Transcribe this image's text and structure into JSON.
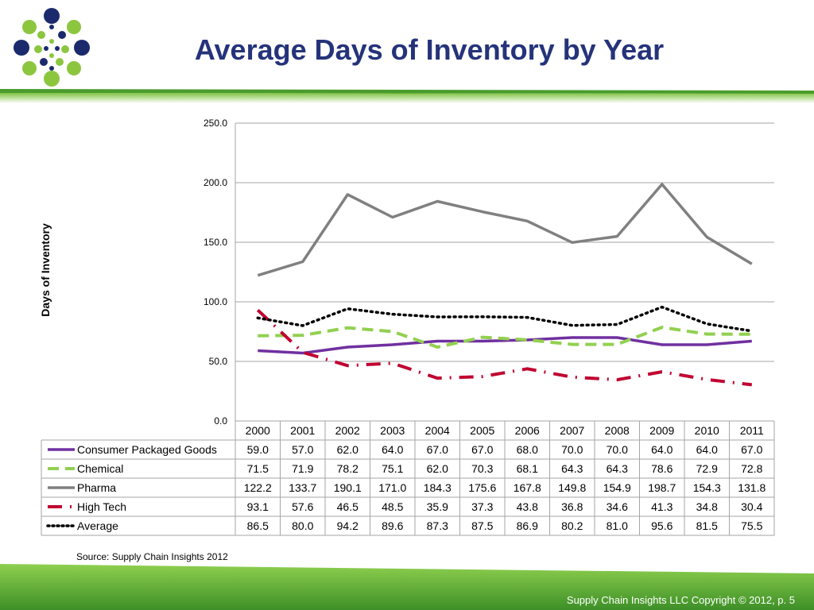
{
  "slide": {
    "title": "Average Days of Inventory by Year",
    "source": "Source:  Supply Chain Insights 2012",
    "copyright": "Supply Chain Insights LLC Copyright © 2012, p. 5",
    "logo_icon": "dot-cluster-logo-icon",
    "colors": {
      "title": "#25337a",
      "brand_green": "#4a9c2d",
      "navy": "#1a2a6c",
      "lime": "#8cc63f"
    }
  },
  "chart_data": {
    "type": "line",
    "title": "",
    "ylabel": "Days of Inventory",
    "xlabel": "",
    "ylim": [
      0,
      250
    ],
    "yticks": [
      "0.0",
      "50.0",
      "100.0",
      "150.0",
      "200.0",
      "250.0"
    ],
    "grid": true,
    "legend": "data-table-below",
    "categories": [
      "2000",
      "2001",
      "2002",
      "2003",
      "2004",
      "2005",
      "2006",
      "2007",
      "2008",
      "2009",
      "2010",
      "2011"
    ],
    "series": [
      {
        "name": "Consumer Packaged Goods",
        "color": "#7030a0",
        "dash": "solid",
        "values": [
          59.0,
          57.0,
          62.0,
          64.0,
          67.0,
          67.0,
          68.0,
          70.0,
          70.0,
          64.0,
          64.0,
          67.0
        ]
      },
      {
        "name": "Chemical",
        "color": "#92d050",
        "dash": "dash",
        "values": [
          71.5,
          71.9,
          78.2,
          75.1,
          62.0,
          70.3,
          68.1,
          64.3,
          64.3,
          78.6,
          72.9,
          72.8
        ]
      },
      {
        "name": "Pharma",
        "color": "#808080",
        "dash": "solid",
        "values": [
          122.2,
          133.7,
          190.1,
          171.0,
          184.3,
          175.6,
          167.8,
          149.8,
          154.9,
          198.7,
          154.3,
          131.8
        ]
      },
      {
        "name": "High Tech",
        "color": "#c00030",
        "dash": "dashdot",
        "values": [
          93.1,
          57.6,
          46.5,
          48.5,
          35.9,
          37.3,
          43.8,
          36.8,
          34.6,
          41.3,
          34.8,
          30.4
        ]
      },
      {
        "name": "Average",
        "color": "#000000",
        "dash": "dot",
        "values": [
          86.5,
          80.0,
          94.2,
          89.6,
          87.3,
          87.5,
          86.9,
          80.2,
          81.0,
          95.6,
          81.5,
          75.5
        ]
      }
    ],
    "table_display": [
      [
        "59.0",
        "57.0",
        "62.0",
        "64.0",
        "67.0",
        "67.0",
        "68.0",
        "70.0",
        "70.0",
        "64.0",
        "64.0",
        "67.0"
      ],
      [
        "71.5",
        "71.9",
        "78.2",
        "75.1",
        "62.0",
        "70.3",
        "68.1",
        "64.3",
        "64.3",
        "78.6",
        "72.9",
        "72.8"
      ],
      [
        "122.2",
        "133.7",
        "190.1",
        "171.0",
        "184.3",
        "175.6",
        "167.8",
        "149.8",
        "154.9",
        "198.7",
        "154.3",
        "131.8"
      ],
      [
        "93.1",
        "57.6",
        "46.5",
        "48.5",
        "35.9",
        "37.3",
        "43.8",
        "36.8",
        "34.6",
        "41.3",
        "34.8",
        "30.4"
      ],
      [
        "86.5",
        "80.0",
        "94.2",
        "89.6",
        "87.3",
        "87.5",
        "86.9",
        "80.2",
        "81.0",
        "95.6",
        "81.5",
        "75.5"
      ]
    ]
  }
}
